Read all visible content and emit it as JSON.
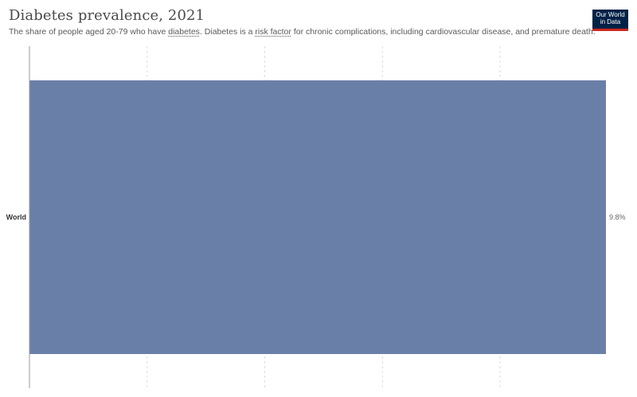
{
  "header": {
    "title": "Diabetes prevalence, 2021",
    "subtitle_parts": [
      {
        "text": "The share of people aged 20-79 who have ",
        "link": false
      },
      {
        "text": "diabetes",
        "link": true
      },
      {
        "text": ". Diabetes is a ",
        "link": false
      },
      {
        "text": "risk factor",
        "link": true
      },
      {
        "text": " for chronic complications, including cardiovascular disease, and premature death.",
        "link": false
      }
    ],
    "logo_line1": "Our World",
    "logo_line2": "in Data"
  },
  "colors": {
    "bar": "#6a7fa8",
    "gridline": "#dddddd",
    "axis": "#999999"
  },
  "chart_data": {
    "type": "bar",
    "orientation": "horizontal",
    "title": "Diabetes prevalence, 2021",
    "categories": [
      "World"
    ],
    "values": [
      9.8
    ],
    "value_labels": [
      "9.8%"
    ],
    "xlim": [
      0,
      9.8
    ],
    "unit": "%",
    "grid": true,
    "gridline_values": [
      2,
      4,
      6,
      8
    ]
  }
}
